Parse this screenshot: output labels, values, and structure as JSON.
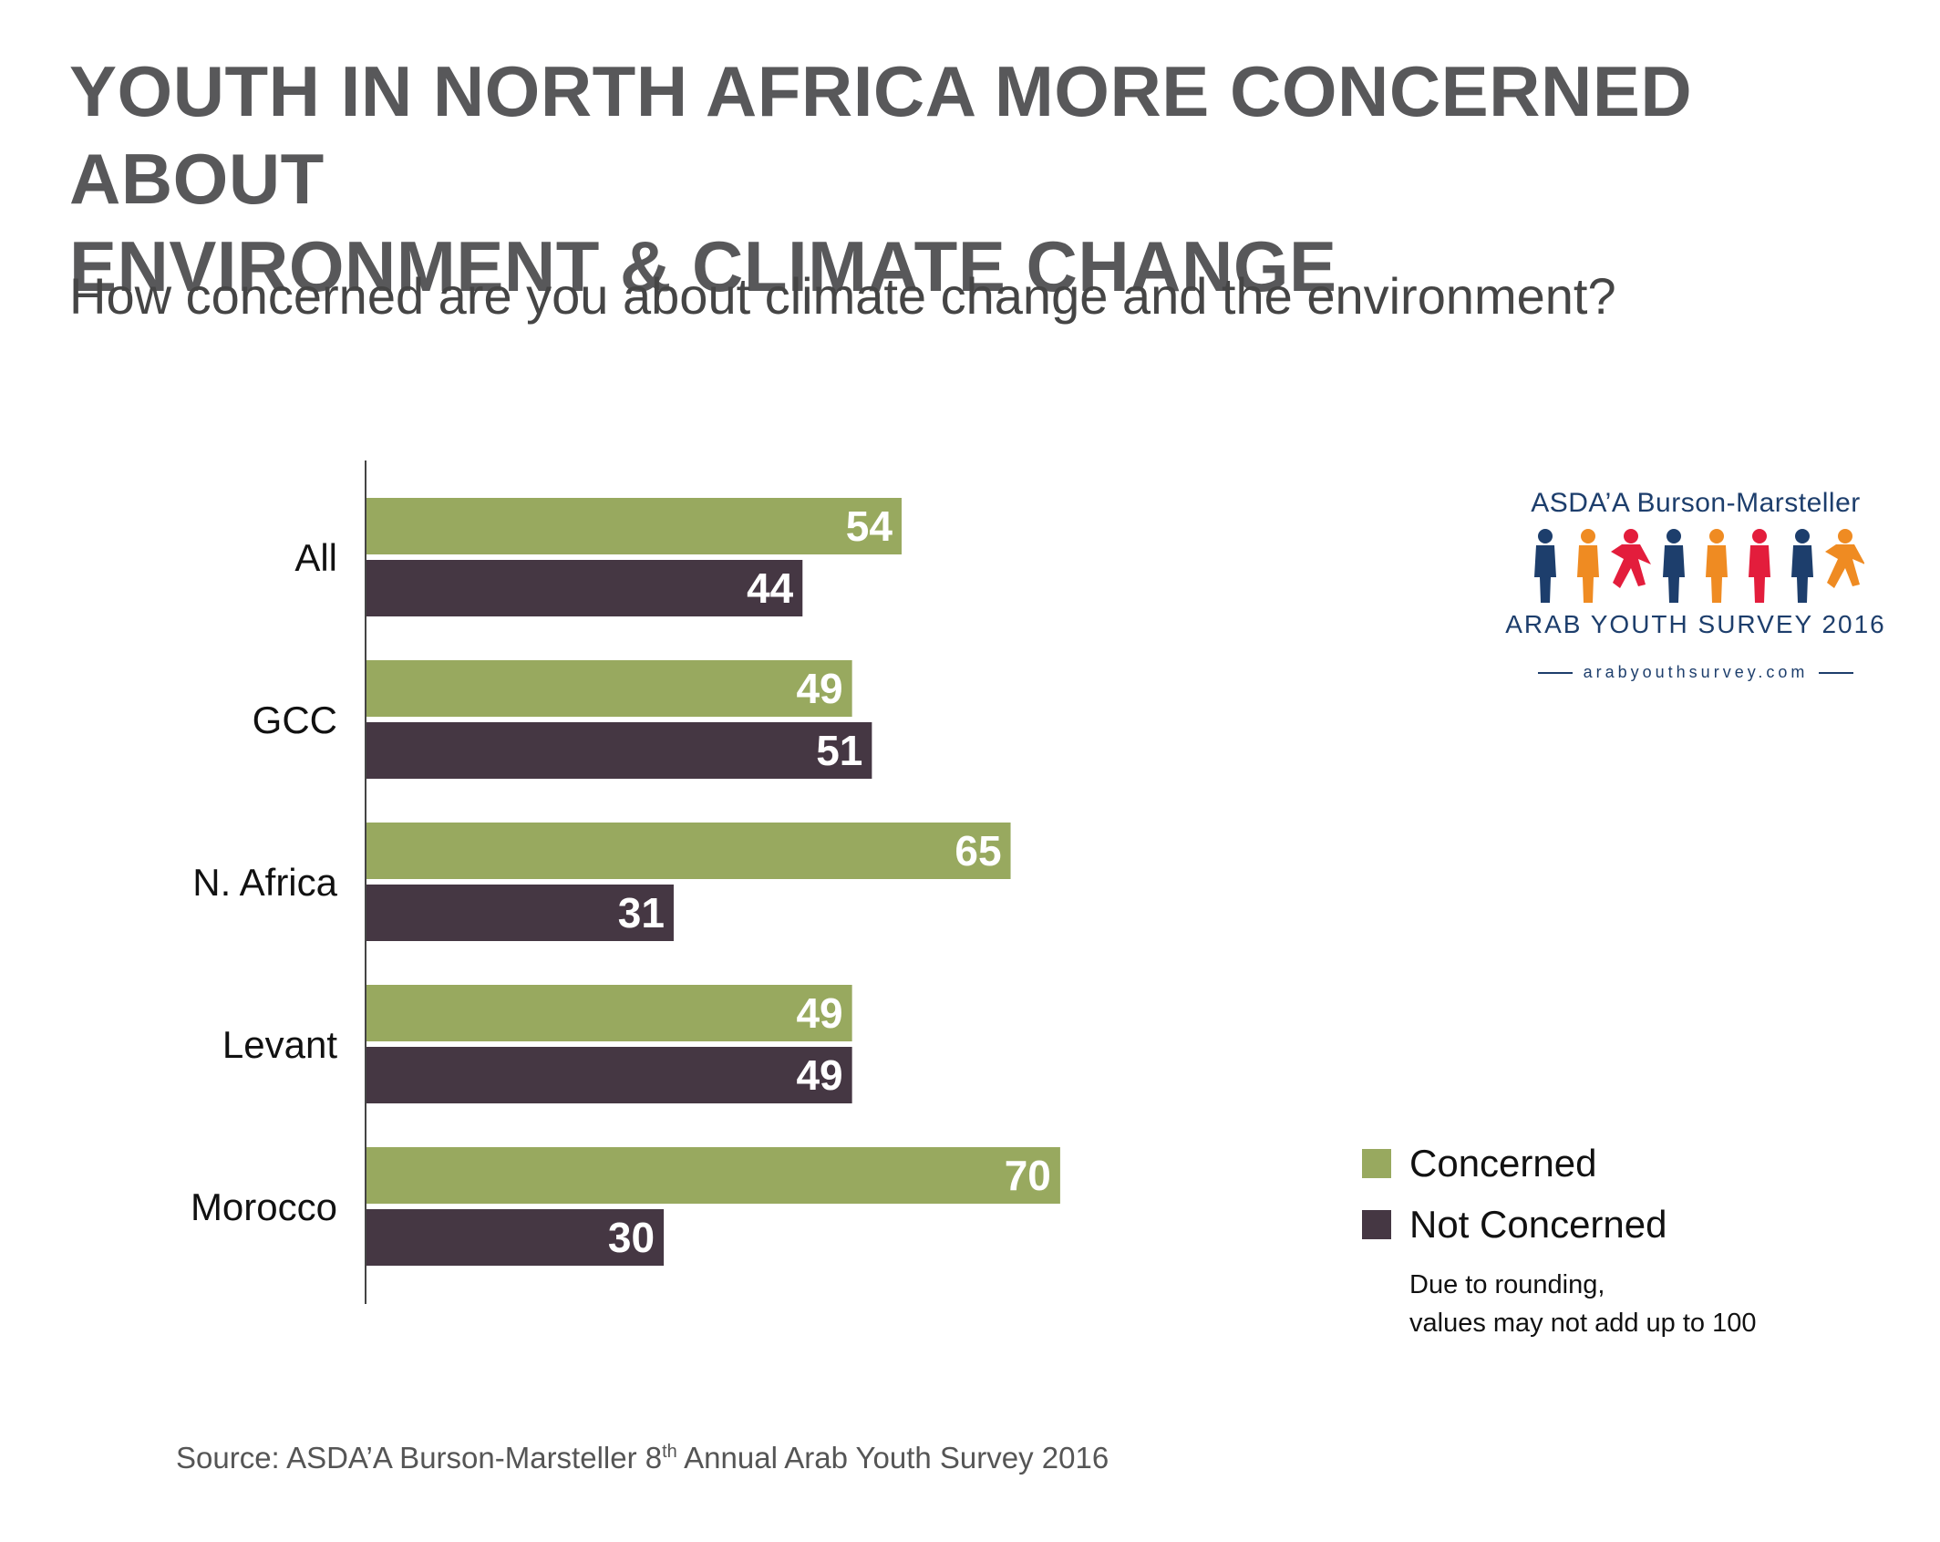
{
  "title": {
    "line1": "YOUTH IN NORTH AFRICA MORE CONCERNED ABOUT",
    "line2": "ENVIRONMENT & CLIMATE CHANGE"
  },
  "subtitle": "How concerned are you about climate change and the environment?",
  "chart_data": {
    "type": "bar",
    "orientation": "horizontal",
    "categories": [
      "All",
      "GCC",
      "N. Africa",
      "Levant",
      "Morocco"
    ],
    "series": [
      {
        "name": "Concerned",
        "color": "#98a95f",
        "values": [
          54,
          49,
          65,
          49,
          70
        ]
      },
      {
        "name": "Not Concerned",
        "color": "#453743",
        "values": [
          44,
          51,
          31,
          49,
          30
        ]
      }
    ],
    "xlim": [
      0,
      100
    ],
    "grid": false,
    "legend_position": "bottom-right"
  },
  "legend": {
    "concerned": "Concerned",
    "not_concerned": "Not Concerned"
  },
  "footnote": {
    "line1": "Due to rounding,",
    "line2": "values may not add up to 100"
  },
  "source": {
    "before": "Source: ASDA’A Burson-Marsteller 8",
    "sup": "th",
    "after": " Annual Arab Youth Survey 2016"
  },
  "logo": {
    "brand": "ASDA’A Burson-Marsteller",
    "survey": "ARAB YOUTH SURVEY 2016",
    "url": "arabyouthsurvey.com",
    "figure_colors": [
      "#1d3e6c",
      "#ef8b22",
      "#e31d3c",
      "#1d3e6c",
      "#ef8b22",
      "#e31d3c",
      "#1d3e6c",
      "#ef8b22"
    ]
  },
  "colors": {
    "title": "#58585a",
    "concerned": "#98a95f",
    "not_concerned": "#453743"
  }
}
